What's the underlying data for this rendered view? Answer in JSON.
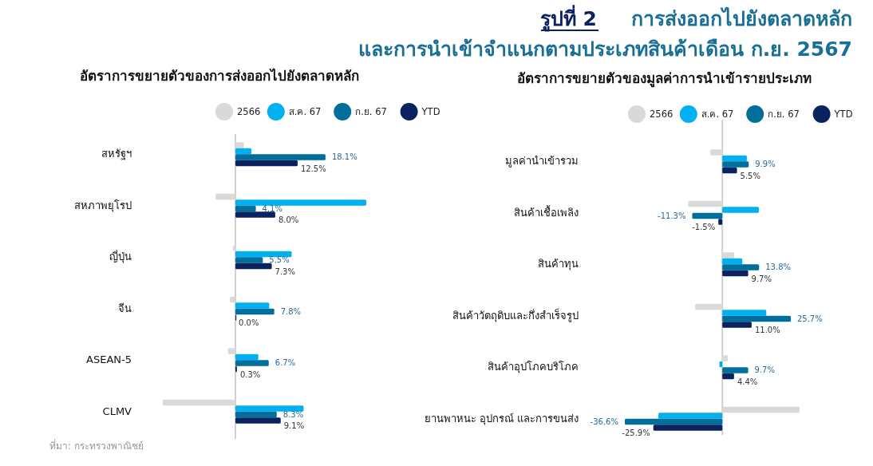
{
  "chart_data": [
    {
      "type": "bar",
      "orientation": "horizontal",
      "title": "อัตราการขยายตัวของการส่งออกไปยังตลาดหลัก",
      "legend": "top",
      "categories": [
        "สหรัฐฯ",
        "สหภาพยุโรป",
        "ญี่ปุ่น",
        "จีน",
        "ASEAN-5",
        "CLMV"
      ],
      "series": [
        {
          "name": "2566",
          "color": "#d9d9d9",
          "values": [
            1.7,
            -4.0,
            -0.5,
            -1.1,
            -1.5,
            -14.6
          ]
        },
        {
          "name": "ส.ค. 67",
          "color": "#00b0f0",
          "values": [
            3.2,
            26.3,
            11.3,
            6.8,
            4.6,
            13.7
          ]
        },
        {
          "name": "ก.ย. 67",
          "color": "#006f9c",
          "values": [
            18.1,
            4.1,
            5.5,
            7.8,
            6.7,
            8.3
          ],
          "value_labels": [
            "18.1%",
            "4.1%",
            "5.5%",
            "7.8%",
            "6.7%",
            "8.3%"
          ]
        },
        {
          "name": "YTD",
          "color": "#0b2260",
          "values": [
            12.5,
            8.0,
            7.3,
            0.0,
            0.3,
            9.1
          ],
          "value_labels": [
            "12.5%",
            "8.0%",
            "7.3%",
            "0.0%",
            "0.3%",
            "9.1%"
          ]
        }
      ],
      "annotations": [
        "รูปที่ 2",
        "การส่งออกไปยังตลาดหลัก",
        "และการนำเข้าจำแนกตามประเภทสินค้าเดือน ก.ย. 2567",
        "ที่มา: กระทรวงพาณิชย์"
      ]
    },
    {
      "type": "bar",
      "orientation": "horizontal",
      "title": "อัตราการขยายตัวของมูลค่าการนำเข้ารายประเภท",
      "legend": "top",
      "categories": [
        "มูลค่านำเข้ารวม",
        "สินค้าเชื้อเพลิง",
        "สินค้าทุน",
        "สินค้าวัตถุดิบและกึ่งสำเร็จรูป",
        "สินค้าอุปโภคบริโภค",
        "ยานพาหนะ อุปกรณ์ และการขนส่ง"
      ],
      "series": [
        {
          "name": "2566",
          "color": "#d9d9d9",
          "values": [
            -4.5,
            -12.8,
            4.5,
            -10.2,
            2.1,
            29.0
          ]
        },
        {
          "name": "ส.ค. 67",
          "color": "#00b0f0",
          "values": [
            9.2,
            13.7,
            7.5,
            16.5,
            -1.1,
            -24.0
          ]
        },
        {
          "name": "ก.ย. 67",
          "color": "#006f9c",
          "values": [
            9.9,
            -11.3,
            13.8,
            25.7,
            9.7,
            -36.6
          ],
          "value_labels": [
            "9.9%",
            "-11.3%",
            "13.8%",
            "25.7%",
            "9.7%",
            "-36.6%"
          ]
        },
        {
          "name": "YTD",
          "color": "#0b2260",
          "values": [
            5.5,
            -1.5,
            9.7,
            11.0,
            4.4,
            -25.9
          ],
          "value_labels": [
            "5.5%",
            "-1.5%",
            "9.7%",
            "11.0%",
            "4.4%",
            "-25.9%"
          ]
        }
      ]
    }
  ]
}
